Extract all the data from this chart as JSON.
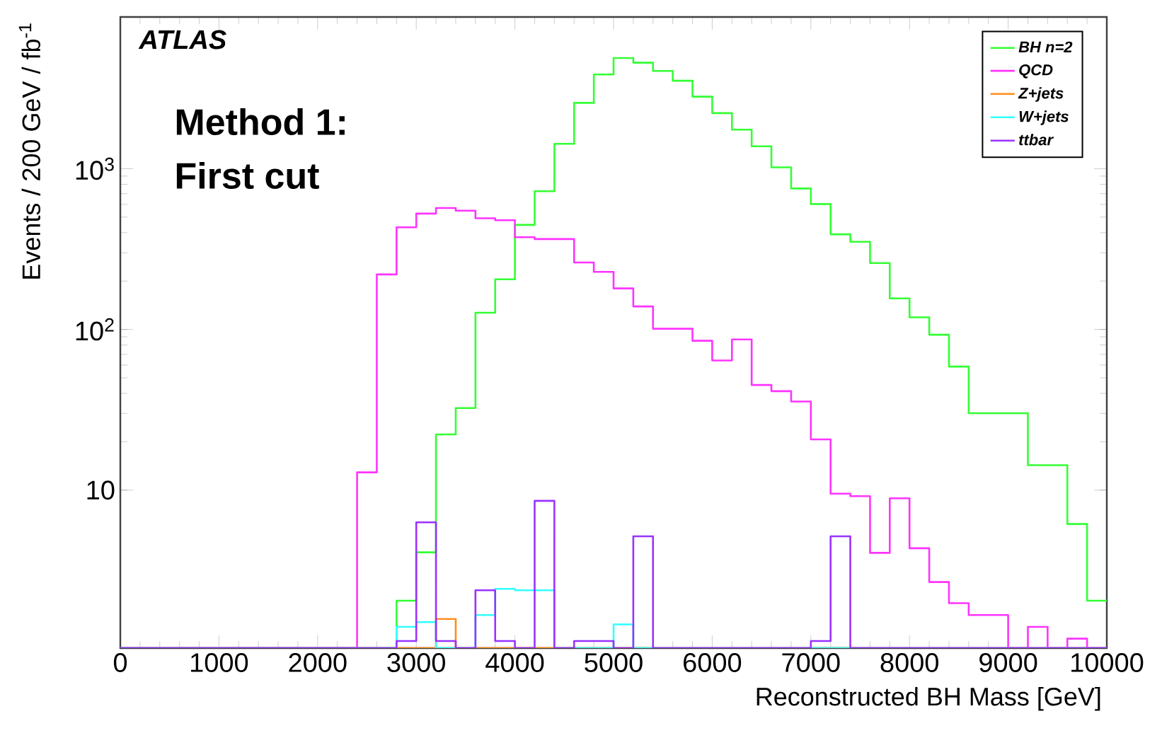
{
  "chart_data": {
    "type": "histogram",
    "xlabel": "Reconstructed BH Mass [GeV]",
    "ylabel": "Events /  200 GeV / fb$^{-1}$",
    "annotations": [
      "ATLAS",
      "Method 1:",
      "First cut"
    ],
    "bins": [
      0,
      200,
      400,
      600,
      800,
      1000,
      1200,
      1400,
      1600,
      1800,
      2000,
      2200,
      2400,
      2600,
      2800,
      3000,
      3200,
      3400,
      3600,
      3800,
      4000,
      4200,
      4400,
      4600,
      4800,
      5000,
      5200,
      5400,
      5600,
      5800,
      6000,
      6200,
      6400,
      6600,
      6800,
      7000,
      7200,
      7400,
      7600,
      7800,
      8000,
      8200,
      8400,
      8600,
      8800,
      9000,
      9200,
      9400,
      9600,
      9800,
      10000
    ],
    "series": [
      {
        "name": "BH n=2",
        "color": "#33ff33",
        "values": [
          null,
          null,
          null,
          null,
          null,
          null,
          null,
          null,
          null,
          null,
          null,
          null,
          null,
          null,
          2.05,
          4.1,
          22.2,
          32.4,
          127,
          205,
          447,
          725,
          1430,
          2570,
          3860,
          4890,
          4570,
          4060,
          3530,
          2810,
          2220,
          1750,
          1380,
          1020,
          754,
          603,
          391,
          351,
          259,
          156,
          119,
          92.7,
          58.7,
          30.1,
          30.1,
          30.1,
          14.3,
          14.3,
          6.15,
          2.05
        ]
      },
      {
        "name": "QCD",
        "color": "#ff33ff",
        "values": [
          null,
          null,
          null,
          null,
          null,
          null,
          null,
          null,
          null,
          null,
          null,
          null,
          12.9,
          220,
          432,
          526,
          570,
          548,
          492,
          478,
          375,
          365,
          365,
          261,
          228,
          180,
          139,
          101,
          101,
          85,
          64.1,
          86.7,
          45.1,
          41.3,
          35.6,
          20.7,
          9.5,
          9.17,
          4.07,
          8.9,
          4.35,
          2.68,
          1.98,
          1.67,
          1.67,
          null,
          1.41,
          null,
          1.19,
          null
        ]
      },
      {
        "name": "Z+jets",
        "color": "#ff8c1a",
        "values": [
          null,
          null,
          null,
          null,
          null,
          null,
          null,
          null,
          null,
          null,
          null,
          null,
          null,
          null,
          null,
          null,
          1.58,
          null,
          null,
          null,
          null,
          null,
          null,
          null,
          null,
          null,
          null,
          null,
          null,
          null,
          null,
          null,
          null,
          null,
          null,
          null,
          null,
          null,
          null,
          null,
          null,
          null,
          null,
          null,
          null,
          null,
          null,
          null,
          null,
          null
        ]
      },
      {
        "name": "W+jets",
        "color": "#33ffff",
        "values": [
          null,
          null,
          null,
          null,
          null,
          null,
          null,
          null,
          null,
          null,
          null,
          null,
          null,
          null,
          1.41,
          1.51,
          null,
          null,
          1.67,
          2.43,
          2.38,
          2.38,
          null,
          null,
          null,
          1.46,
          null,
          null,
          null,
          null,
          null,
          null,
          null,
          null,
          null,
          null,
          null,
          null,
          null,
          null,
          null,
          null,
          null,
          null,
          null,
          null,
          null,
          null,
          null,
          null
        ]
      },
      {
        "name": "ttbar",
        "color": "#9933ff",
        "values": [
          null,
          null,
          null,
          null,
          null,
          null,
          null,
          null,
          null,
          null,
          null,
          null,
          null,
          null,
          1.15,
          6.3,
          1.15,
          null,
          2.38,
          1.15,
          null,
          8.58,
          null,
          1.15,
          1.15,
          null,
          5.16,
          null,
          null,
          null,
          null,
          null,
          null,
          null,
          null,
          1.15,
          5.16,
          null,
          null,
          null,
          null,
          null,
          null,
          null,
          null,
          null,
          null,
          null,
          null,
          null
        ]
      }
    ],
    "log": "y",
    "xlim": [
      0,
      10000
    ],
    "ylim": [
      1.04,
      8800
    ],
    "xticks": [
      0,
      1000,
      2000,
      3000,
      4000,
      5000,
      6000,
      7000,
      8000,
      9000,
      10000
    ],
    "yticks": [
      10,
      {
        "value": 100,
        "label": "10$^{2}$"
      },
      {
        "value": 1000,
        "label": "10$^{3}$"
      }
    ],
    "legend": "top right"
  }
}
